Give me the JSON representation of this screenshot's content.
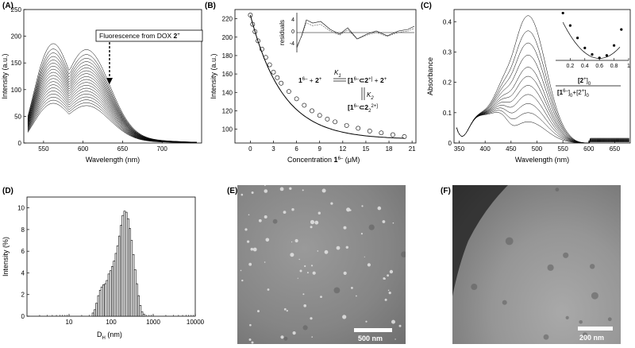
{
  "panels": {
    "A": {
      "label": "(A)"
    },
    "B": {
      "label": "(B)"
    },
    "C": {
      "label": "(C)"
    },
    "D": {
      "label": "(D)"
    },
    "E": {
      "label": "(E)",
      "scale_label": "500 nm"
    },
    "F": {
      "label": "(F)",
      "scale_label": "200 nm"
    }
  },
  "chart_data": [
    {
      "id": "A",
      "type": "line",
      "xlabel": "Wavelength (nm)",
      "ylabel": "Intensity (a.u.)",
      "xlim": [
        525,
        750
      ],
      "ylim": [
        0,
        250
      ],
      "xticks": [
        550,
        600,
        650,
        700
      ],
      "yticks": [
        0,
        50,
        100,
        150,
        200,
        250
      ],
      "annotation": "Fluorescence from DOX",
      "annotation_bold": "2",
      "annotation_sup": "+",
      "peak_x": 560,
      "series_peaks": [
        225,
        213,
        204,
        196,
        188,
        181,
        174,
        167,
        160,
        153,
        146,
        139,
        132,
        125,
        118,
        111,
        104,
        97,
        90
      ],
      "start_offset": 0.22
    },
    {
      "id": "B",
      "type": "scatter",
      "xlabel": "Concentration",
      "xlabel_bold": "1",
      "xlabel_sup": "6–",
      "xlabel_unit": "(μM)",
      "ylabel": "Intensity (a.u.)",
      "xlim": [
        -2,
        21.5
      ],
      "ylim": [
        85,
        230
      ],
      "xticks": [
        0,
        3,
        6,
        9,
        12,
        15,
        18,
        21
      ],
      "yticks": [
        100,
        120,
        140,
        160,
        180,
        200,
        220
      ],
      "x": [
        0,
        0.3,
        0.6,
        1,
        1.5,
        2,
        2.5,
        3,
        3.5,
        4,
        5,
        6,
        7,
        8,
        9,
        10,
        11,
        12.5,
        14,
        15.5,
        17,
        18.5,
        20
      ],
      "y": [
        224,
        214,
        206,
        196,
        187,
        178,
        170,
        162,
        156,
        150,
        141,
        133,
        126,
        120,
        115,
        111,
        108,
        104,
        101,
        98,
        96,
        94,
        92
      ],
      "inset": {
        "ylabel": "residuals",
        "yticks": [
          4,
          0,
          -4
        ]
      },
      "scheme": {
        "host": "1",
        "host_sup": "6–",
        "guest": "2",
        "guest_sup": "+",
        "complex1": "[1",
        "complex1_sup": "6–",
        "complex1_guest": "2",
        "complex1_close": "+]",
        "complex2": "[1",
        "complex2_sup": "6–",
        "complex2_guest": "2",
        "complex2_sub": "2",
        "complex2_close": "2+]",
        "k1": "K",
        "k1_sub": "1",
        "k2": "K",
        "k2_sub": "2",
        "plus": "+"
      }
    },
    {
      "id": "C",
      "type": "line",
      "xlabel": "Wavelength (nm)",
      "ylabel": "Absorbance",
      "xlim": [
        340,
        680
      ],
      "ylim": [
        0,
        0.44
      ],
      "xticks": [
        350,
        400,
        450,
        500,
        550,
        600,
        650
      ],
      "yticks": [
        0,
        0.1,
        0.2,
        0.3,
        0.4
      ],
      "peak_x": 483,
      "series_peaks": [
        0.42,
        0.37,
        0.33,
        0.29,
        0.25,
        0.22,
        0.19,
        0.16,
        0.13,
        0.1,
        0.07
      ],
      "inset": {
        "type": "scatter",
        "xticks": [
          0.2,
          0.4,
          0.6,
          0.8,
          1
        ],
        "x": [
          0.1,
          0.2,
          0.3,
          0.4,
          0.5,
          0.6,
          0.7,
          0.8,
          0.9
        ],
        "y": [
          0.95,
          0.7,
          0.45,
          0.25,
          0.12,
          0.05,
          0.1,
          0.3,
          0.62
        ],
        "xlabel_num": "[2",
        "xlabel_num_sup": "+",
        "xlabel_num_close": "]",
        "xlabel_num_sub": "0",
        "xlabel_den_a": "[1",
        "xlabel_den_a_sup": "6–",
        "xlabel_den_a_close": "]",
        "xlabel_den_a_sub": "0",
        "xlabel_den_plus": "+[2",
        "xlabel_den_b_sup": "+",
        "xlabel_den_b_close": "]",
        "xlabel_den_b_sub": "0"
      }
    },
    {
      "id": "D",
      "type": "bar",
      "xlabel": "D",
      "xlabel_sub": "H",
      "xlabel_unit": "(nm)",
      "ylabel": "Intensity (%)",
      "xscale": "log",
      "xlim": [
        1,
        10000
      ],
      "ylim": [
        0,
        11
      ],
      "xticks": [
        10,
        100,
        1000,
        10000
      ],
      "xtick_labels": [
        "10",
        "100",
        "1000",
        "10000"
      ],
      "yticks": [
        0,
        2,
        4,
        6,
        8,
        10
      ],
      "x": [
        37,
        41,
        45,
        50,
        55,
        60,
        66,
        73,
        80,
        88,
        97,
        107,
        118,
        130,
        143,
        157,
        173,
        190,
        209,
        230,
        253,
        279,
        307,
        338,
        372,
        409,
        450,
        495,
        545,
        600
      ],
      "values": [
        0.3,
        0.6,
        1.2,
        1.9,
        2.4,
        2.7,
        2.9,
        3.0,
        3.3,
        3.9,
        4.2,
        4.6,
        5.1,
        5.8,
        6.5,
        7.4,
        8.4,
        9.3,
        9.7,
        9.6,
        9.0,
        8.1,
        7.0,
        5.7,
        4.3,
        3.0,
        1.9,
        1.0,
        0.4,
        0.2
      ]
    }
  ]
}
